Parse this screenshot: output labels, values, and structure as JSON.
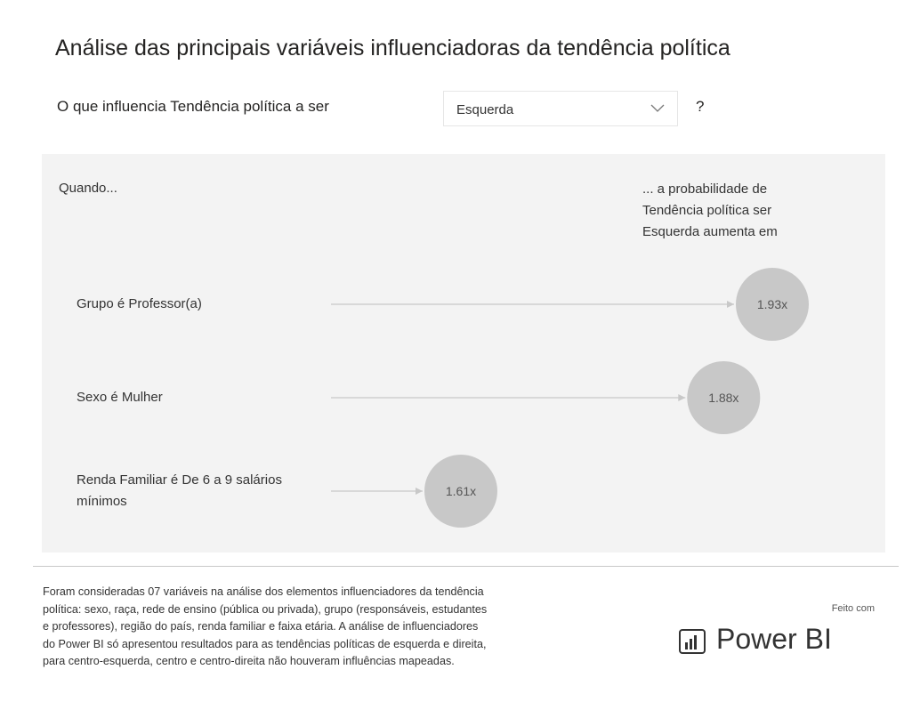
{
  "title": "Análise das principais variáveis influenciadoras da tendência política",
  "question": {
    "prefix": "O que influencia Tendência política a ser",
    "selected": "Esquerda",
    "suffix": "?"
  },
  "chart_data": {
    "type": "key-influencers",
    "header_left": "Quando...",
    "header_right": "... a probabilidade de Tendência política ser Esquerda aumenta em",
    "categories": [
      "Grupo é Professor(a)",
      "Sexo é Mulher",
      "Renda Familiar é De 6 a 9 salários mínimos"
    ],
    "values": [
      1.93,
      1.88,
      1.61
    ],
    "value_labels": [
      "1.93x",
      "1.88x",
      "1.61x"
    ],
    "color": "#c8c8c8"
  },
  "footnote": [
    "Foram consideradas 07 variáveis na análise dos elementos influenciadores da tendência",
    "política: sexo, raça, rede de ensino (pública ou privada), grupo (responsáveis, estudantes",
    "e professores), região do país, renda familiar e faixa etária. A análise de influenciadores",
    "do Power BI só apresentou resultados para as tendências políticas de esquerda e direita,",
    "para centro-esquerda, centro e centro-direita não houveram influências mapeadas."
  ],
  "branding": {
    "made_with": "Feito com",
    "product": "Power BI"
  }
}
